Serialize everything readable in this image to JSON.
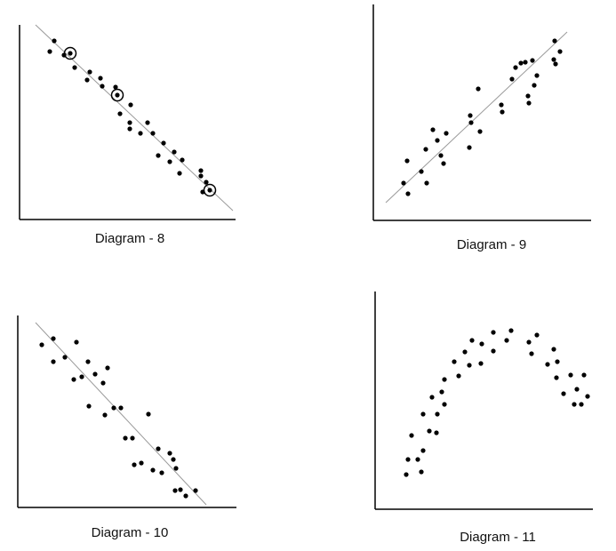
{
  "chart_data": [
    {
      "type": "scatter",
      "title": "Diagram - 8",
      "xlim": [
        0,
        243
      ],
      "ylim": [
        0,
        219
      ],
      "x": [
        34,
        39,
        50,
        57,
        62,
        76,
        79,
        91,
        93,
        108,
        110,
        113,
        125,
        124,
        124,
        136,
        144,
        150,
        156,
        162,
        169,
        174,
        183,
        180,
        204,
        204,
        206,
        210,
        214
      ],
      "values": [
        189,
        201,
        185,
        187,
        171,
        157,
        166,
        159,
        150,
        149,
        140,
        119,
        129,
        109,
        102,
        97,
        109,
        97,
        72,
        86,
        65,
        76,
        67,
        52,
        55,
        49,
        31,
        42,
        33
      ],
      "highlight": [
        3,
        10,
        28
      ],
      "trend_line": [
        [
          18,
          219
        ],
        [
          240,
          10
        ]
      ],
      "color": "#000000"
    },
    {
      "type": "scatter",
      "title": "Diagram - 9",
      "xlim": [
        0,
        245
      ],
      "ylim": [
        0,
        243
      ],
      "x": [
        34,
        38,
        39,
        54,
        59,
        60,
        67,
        72,
        76,
        79,
        82,
        109,
        110,
        108,
        118,
        120,
        144,
        145,
        156,
        160,
        166,
        171,
        174,
        175,
        179,
        181,
        184,
        203,
        204,
        205,
        210
      ],
      "values": [
        42,
        67,
        30,
        55,
        80,
        42,
        102,
        90,
        73,
        64,
        98,
        118,
        110,
        82,
        148,
        100,
        130,
        122,
        159,
        172,
        177,
        178,
        140,
        132,
        180,
        152,
        163,
        181,
        202,
        176,
        190
      ],
      "trend_line": [
        [
          14,
          20
        ],
        [
          218,
          212
        ]
      ],
      "color": "#000000"
    },
    {
      "type": "scatter",
      "title": "Diagram - 10",
      "xlim": [
        0,
        246
      ],
      "ylim": [
        0,
        216
      ],
      "x": [
        27,
        40,
        40,
        53,
        66,
        63,
        72,
        79,
        87,
        96,
        101,
        80,
        98,
        108,
        116,
        121,
        129,
        131,
        139,
        147,
        152,
        158,
        162,
        171,
        175,
        178,
        177,
        183,
        189,
        200
      ],
      "values": [
        183,
        190,
        164,
        169,
        186,
        144,
        147,
        164,
        150,
        140,
        157,
        114,
        104,
        112,
        112,
        78,
        78,
        48,
        50,
        105,
        42,
        66,
        39,
        61,
        54,
        44,
        19,
        20,
        13,
        19
      ],
      "trend_line": [
        [
          20,
          208
        ],
        [
          212,
          3
        ]
      ],
      "color": "#000000"
    },
    {
      "type": "scatter",
      "title": "Diagram - 11",
      "xlim": [
        0,
        245
      ],
      "ylim": [
        0,
        245
      ],
      "x": [
        35,
        37,
        41,
        48,
        52,
        54,
        54,
        61,
        64,
        69,
        70,
        75,
        78,
        78,
        89,
        94,
        101,
        106,
        109,
        119,
        120,
        133,
        133,
        148,
        153,
        173,
        176,
        182,
        194,
        201,
        205,
        204,
        212,
        220,
        224,
        227,
        232,
        235,
        239
      ],
      "values": [
        39,
        56,
        83,
        56,
        42,
        66,
        107,
        88,
        126,
        86,
        107,
        132,
        146,
        118,
        166,
        150,
        177,
        162,
        190,
        164,
        186,
        199,
        178,
        190,
        201,
        188,
        175,
        196,
        163,
        180,
        166,
        148,
        130,
        151,
        118,
        135,
        118,
        151,
        127
      ],
      "color": "#000000"
    }
  ]
}
